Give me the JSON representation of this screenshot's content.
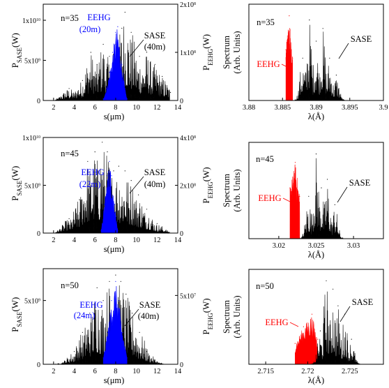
{
  "chart_data": [
    {
      "type": "area",
      "panel": "top-left",
      "annotation": "n=35",
      "xlabel": "s(μm)",
      "ylabel_left": "P_SASE(W)",
      "ylabel_right": "P_EEHG(W)",
      "x_ticks": [
        "2",
        "4",
        "6",
        "8",
        "10",
        "12",
        "14"
      ],
      "y_ticks_left": [
        "0",
        "5x10^9",
        "1x10^10"
      ],
      "y_ticks_right": [
        "0",
        "1x10^8",
        "2x10^8"
      ],
      "xlim": [
        1,
        14
      ],
      "ylim_left": [
        0,
        12000000000.0
      ],
      "series": [
        {
          "name": "SASE",
          "sublabel": "(40m)",
          "color": "#000000",
          "x": [
            3.5,
            4.8,
            5.6,
            6.2,
            6.8,
            7.4,
            8.0,
            8.6,
            8.9,
            9.5,
            10.3,
            11.0,
            11.8,
            12.5,
            13.3
          ],
          "values": [
            1500000000.0,
            2500000000.0,
            6000000000.0,
            4500000000.0,
            7000000000.0,
            5500000000.0,
            7000000000.0,
            9000000000.0,
            11000000000.0,
            8500000000.0,
            5500000000.0,
            6000000000.0,
            4500000000.0,
            3000000000.0,
            1000000000.0
          ]
        },
        {
          "name": "EEHG",
          "sublabel": "(20m)",
          "color": "#0000ff",
          "x": [
            6.8,
            7.1,
            7.4,
            7.7,
            8.0,
            8.2,
            8.4,
            8.6,
            8.9,
            9.1
          ],
          "values": [
            200000000.0,
            1500000000.0,
            3500000000.0,
            6000000000.0,
            8500000000.0,
            9200000000.0,
            7000000000.0,
            4500000000.0,
            1500000000.0,
            200000000.0
          ]
        }
      ]
    },
    {
      "type": "area",
      "panel": "top-right",
      "annotation": "n=35",
      "xlabel": "λ(Å)",
      "ylabel": "Spectrum (Arb. Units)",
      "x_ticks": [
        "3.88",
        "3.885",
        "3.89",
        "3.895",
        "3.9"
      ],
      "xlim": [
        3.88,
        3.9
      ],
      "series": [
        {
          "name": "EEHG",
          "color": "#ff0000",
          "x": [
            3.8855,
            3.886,
            3.8865
          ],
          "values": [
            0.6,
            1.0,
            0.5
          ]
        },
        {
          "name": "SASE",
          "color": "#000000",
          "x": [
            3.888,
            3.889,
            3.89,
            3.891,
            3.892,
            3.893
          ],
          "values": [
            0.5,
            0.95,
            0.7,
            0.85,
            0.5,
            0.3
          ]
        }
      ]
    },
    {
      "type": "area",
      "panel": "middle-left",
      "annotation": "n=45",
      "xlabel": "s(μm)",
      "ylabel_left": "P_SASE(W)",
      "ylabel_right": "P_EEHG(W)",
      "x_ticks": [
        "2",
        "4",
        "6",
        "8",
        "10",
        "12",
        "14"
      ],
      "y_ticks_left": [
        "0",
        "5x10^9",
        "1x10^10"
      ],
      "y_ticks_right": [
        "0",
        "2x10^8",
        "4x10^8"
      ],
      "xlim": [
        1,
        14
      ],
      "ylim_left": [
        0,
        10000000000.0
      ],
      "series": [
        {
          "name": "SASE",
          "sublabel": "(40m)",
          "color": "#000000",
          "x": [
            3.5,
            4.5,
            5.3,
            6.0,
            6.7,
            7.2,
            7.8,
            8.3,
            8.9,
            9.5,
            10.2,
            11.0,
            12.0
          ],
          "values": [
            1500000000.0,
            3500000000.0,
            7500000000.0,
            8500000000.0,
            9500000000.0,
            8500000000.0,
            6500000000.0,
            7000000000.0,
            6500000000.0,
            5500000000.0,
            4000000000.0,
            2500000000.0,
            1000000000.0
          ]
        },
        {
          "name": "EEHG",
          "sublabel": "(22m)",
          "color": "#0000ff",
          "x": [
            6.6,
            6.9,
            7.2,
            7.4,
            7.6,
            7.9,
            8.2
          ],
          "values": [
            300000000.0,
            3000000000.0,
            6000000000.0,
            7500000000.0,
            6000000000.0,
            3000000000.0,
            300000000.0
          ]
        }
      ]
    },
    {
      "type": "area",
      "panel": "middle-right",
      "annotation": "n=45",
      "xlabel": "λ(Å)",
      "ylabel": "Spectrum (Arb. Units)",
      "x_ticks": [
        "3.02",
        "3.025",
        "3.03"
      ],
      "xlim": [
        3.016,
        3.034
      ],
      "series": [
        {
          "name": "EEHG",
          "color": "#ff0000",
          "x": [
            3.0215,
            3.0222,
            3.0228
          ],
          "values": [
            0.6,
            0.9,
            0.5
          ]
        },
        {
          "name": "SASE",
          "color": "#000000",
          "x": [
            3.024,
            3.025,
            3.0257,
            3.0265,
            3.0275
          ],
          "values": [
            0.5,
            1.0,
            0.6,
            0.7,
            0.4
          ]
        }
      ]
    },
    {
      "type": "area",
      "panel": "bottom-left",
      "annotation": "n=50",
      "xlabel": "s(μm)",
      "ylabel_left": "P_SASE(W)",
      "ylabel_right": "P_EEHG(W)",
      "x_ticks": [
        "2",
        "4",
        "6",
        "8",
        "10",
        "12",
        "14"
      ],
      "y_ticks_left": [
        "0",
        "5x10^9"
      ],
      "y_ticks_right": [
        "0",
        "5x10^7"
      ],
      "xlim": [
        1,
        14
      ],
      "ylim_left": [
        0,
        7500000000.0
      ],
      "series": [
        {
          "name": "SASE",
          "sublabel": "(40m)",
          "color": "#000000",
          "x": [
            4.0,
            4.8,
            5.5,
            6.2,
            6.8,
            7.4,
            8.0,
            8.5,
            9.0,
            9.6,
            10.3,
            11.0
          ],
          "values": [
            1000000000.0,
            2500000000.0,
            4000000000.0,
            6000000000.0,
            5000000000.0,
            6500000000.0,
            7000000000.0,
            6500000000.0,
            5500000000.0,
            4000000000.0,
            2500000000.0,
            1000000000.0
          ]
        },
        {
          "name": "EEHG",
          "sublabel": "(24m)",
          "color": "#0000ff",
          "x": [
            6.8,
            7.2,
            7.6,
            8.0,
            8.3,
            8.7,
            9.1
          ],
          "values": [
            500000000.0,
            2500000000.0,
            5000000000.0,
            6500000000.0,
            5000000000.0,
            2500000000.0,
            500000000.0
          ]
        }
      ]
    },
    {
      "type": "area",
      "panel": "bottom-right",
      "annotation": "n=50",
      "xlabel": "λ(Å)",
      "ylabel": "Spectrum (Arb. Units)",
      "x_ticks": [
        "2.715",
        "2.72",
        "2.725"
      ],
      "xlim": [
        2.713,
        2.729
      ],
      "series": [
        {
          "name": "EEHG",
          "color": "#ff0000",
          "x": [
            2.7185,
            2.7195,
            2.7205,
            2.7212
          ],
          "values": [
            0.25,
            0.45,
            0.6,
            0.3
          ]
        },
        {
          "name": "SASE",
          "color": "#000000",
          "x": [
            2.7215,
            2.7222,
            2.723,
            2.7236,
            2.7244,
            2.7252
          ],
          "values": [
            0.4,
            1.0,
            0.9,
            0.7,
            0.6,
            0.3
          ]
        }
      ]
    }
  ]
}
